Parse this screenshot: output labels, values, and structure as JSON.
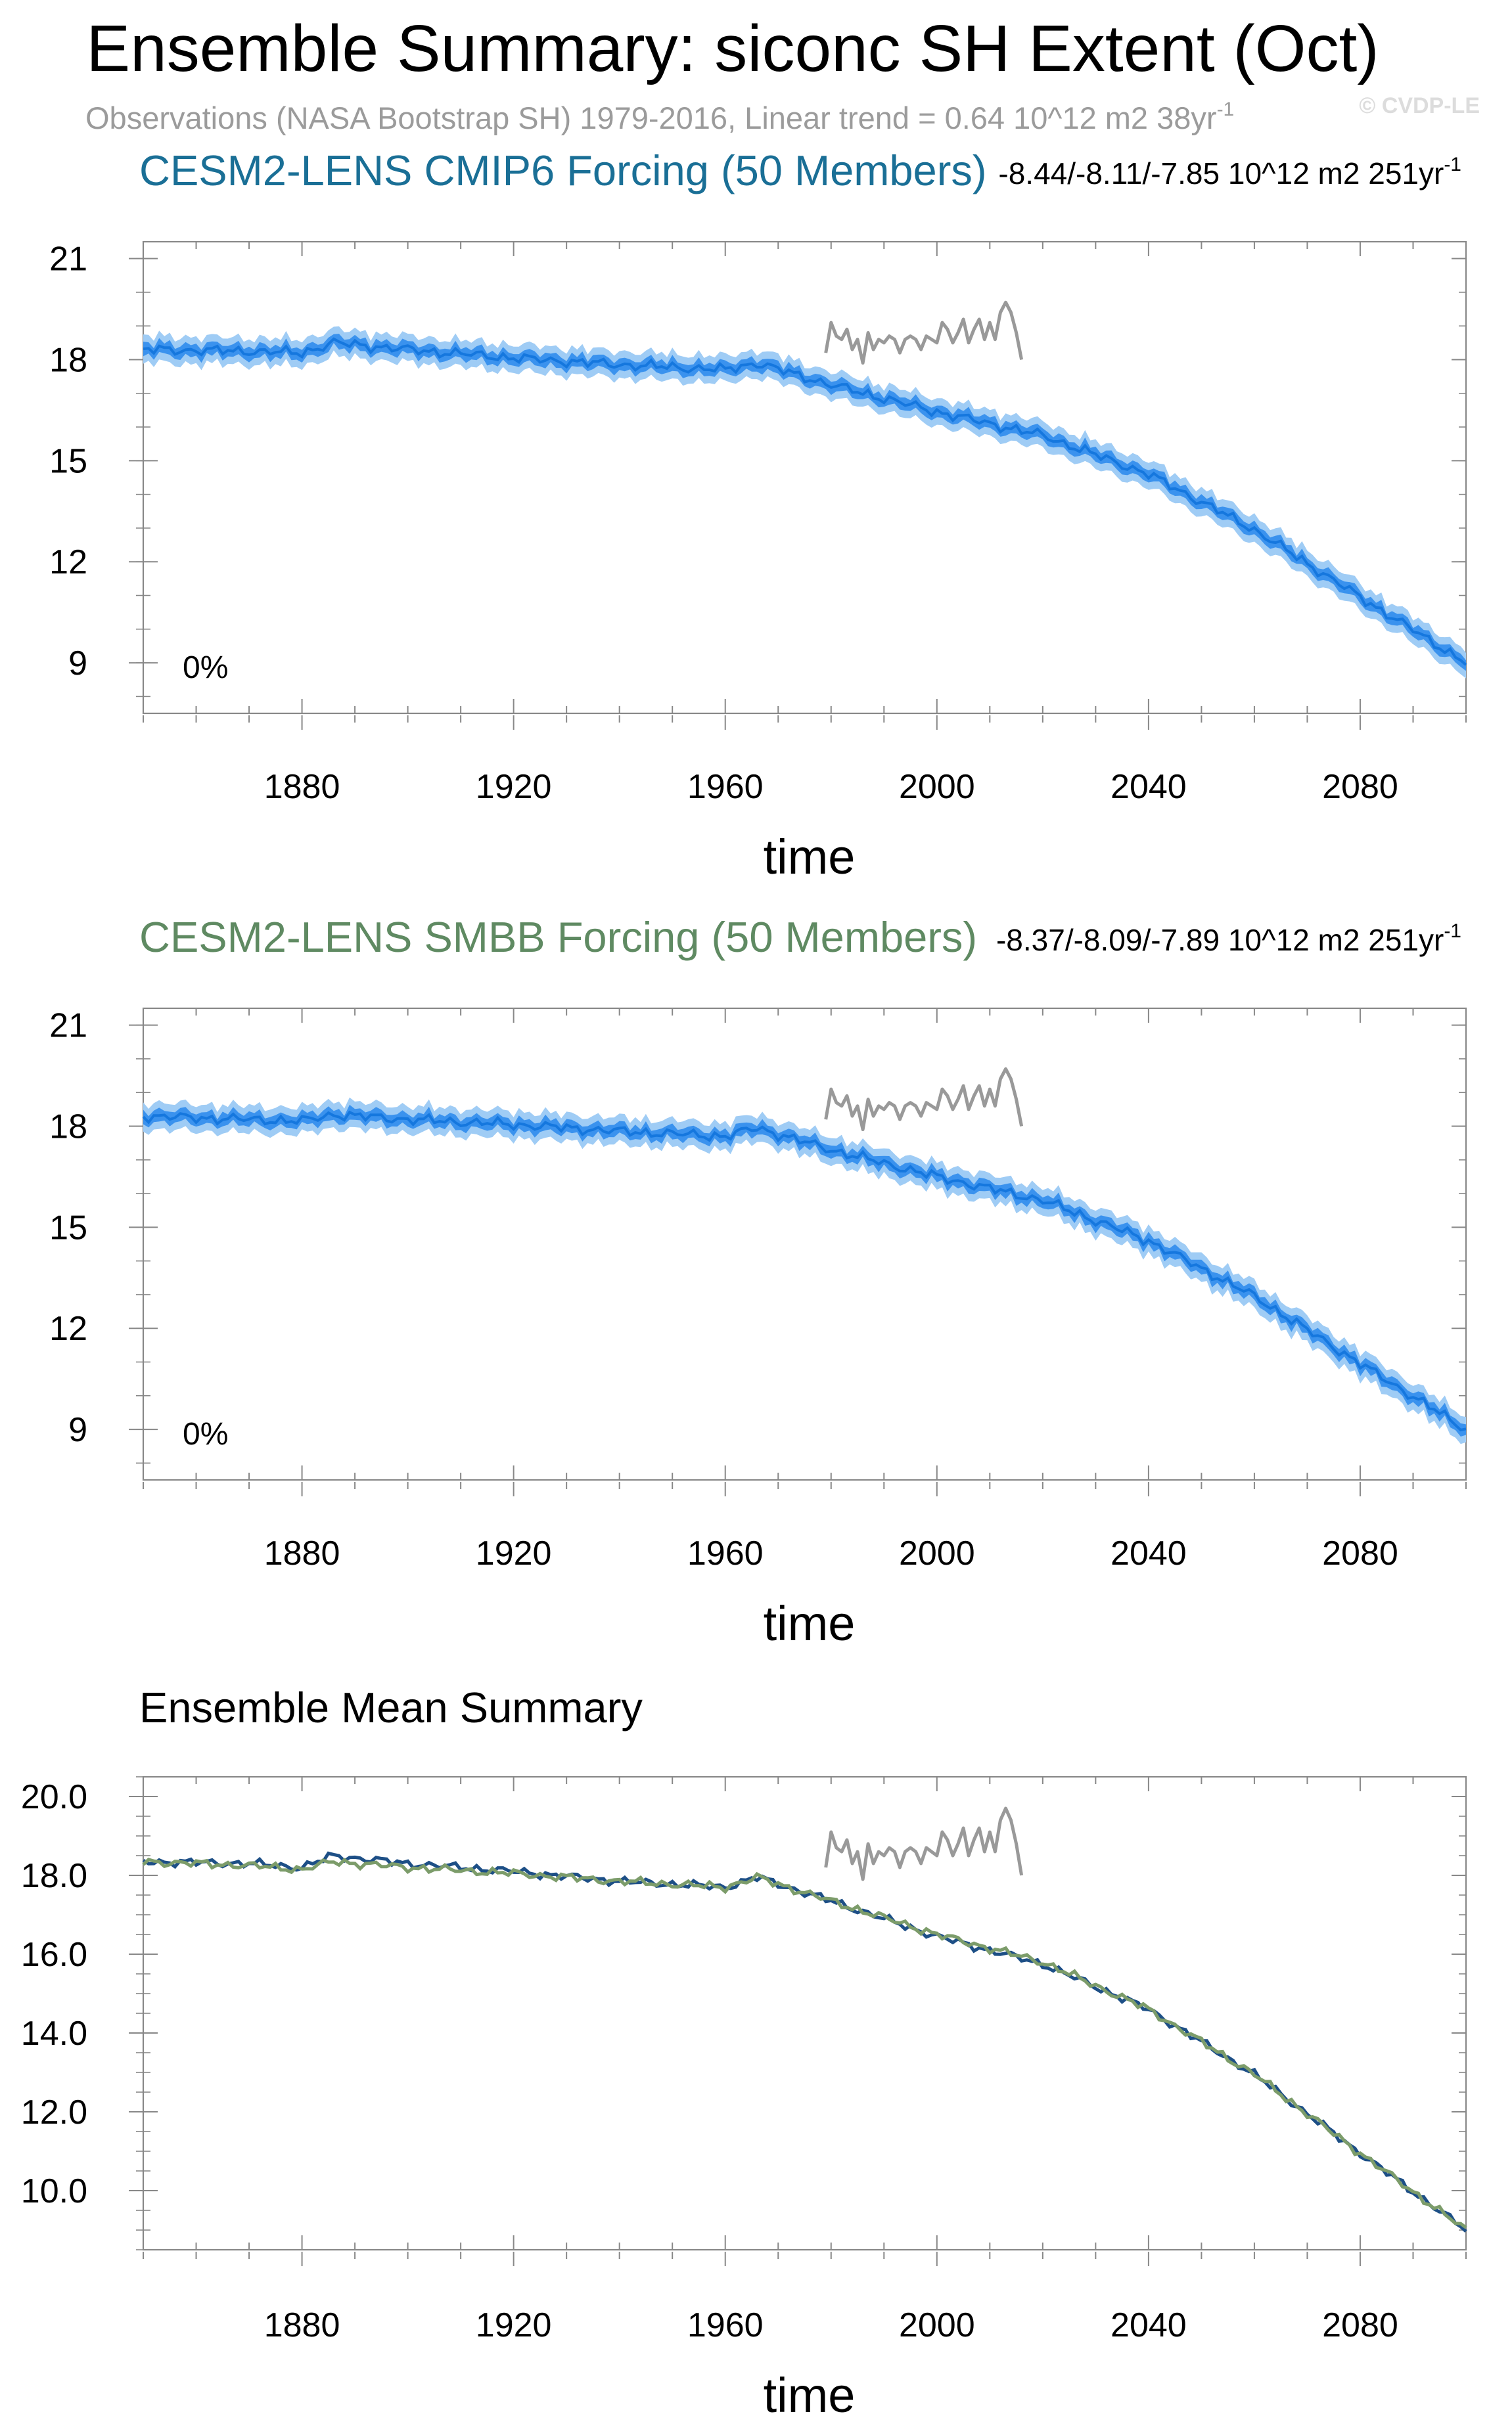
{
  "figure": {
    "title": "Ensemble Summary: siconc SH Extent (Oct)",
    "subtitle": "Observations (NASA Bootstrap SH) 1979-2016, Linear trend = 0.64 10^12 m2 38yr",
    "subtitle_exp": "-1",
    "credit": "© CVDP-LE"
  },
  "colors": {
    "cmip6_title": "#1a6f96",
    "smbb_title": "#5f8a62",
    "band_outer": "#9fccf5",
    "band_inner": "#3a92ee",
    "mean_line": "#1577de",
    "obs": "#999999",
    "axis": "#888888",
    "mean_cmip6": "#1d4f86",
    "mean_smbb": "#7c9c6a"
  },
  "chart_data": [
    {
      "id": "cmip6",
      "type": "line",
      "title": "CESM2-LENS CMIP6 Forcing (50 Members)",
      "trend_text": "-8.44/-8.11/-7.85 10^12 m2 251yr",
      "trend_exp": "-1",
      "percent_label": "0%",
      "xlabel": "time",
      "xlim": [
        1850,
        2100
      ],
      "ylim": [
        7.5,
        21.5
      ],
      "xticks": [
        "1880",
        "1920",
        "1960",
        "2000",
        "2040",
        "2080"
      ],
      "yticks": [
        "21",
        "18",
        "15",
        "12",
        "9"
      ],
      "ensemble_mean_knots": {
        "x": [
          1850,
          1870,
          1880,
          1886,
          1900,
          1920,
          1940,
          1960,
          1966,
          1980,
          2000,
          2020,
          2040,
          2060,
          2080,
          2100
        ],
        "y": [
          18.3,
          18.25,
          18.2,
          18.5,
          18.3,
          18.05,
          17.85,
          17.7,
          17.9,
          17.25,
          16.45,
          15.75,
          14.6,
          12.95,
          10.95,
          9.0
        ]
      },
      "spread_inner": 0.18,
      "spread_outer": 0.4,
      "observations": {
        "name": "Observations (NASA Bootstrap SH)",
        "x": [
          1979,
          1980,
          1981,
          1982,
          1983,
          1984,
          1985,
          1986,
          1987,
          1988,
          1989,
          1990,
          1991,
          1992,
          1993,
          1994,
          1995,
          1996,
          1997,
          1998,
          1999,
          2000,
          2001,
          2002,
          2003,
          2004,
          2005,
          2006,
          2007,
          2008,
          2009,
          2010,
          2011,
          2012,
          2013,
          2014,
          2015,
          2016
        ],
        "y": [
          18.2,
          19.1,
          18.7,
          18.6,
          18.9,
          18.3,
          18.6,
          17.9,
          18.8,
          18.3,
          18.6,
          18.5,
          18.7,
          18.6,
          18.2,
          18.6,
          18.7,
          18.6,
          18.3,
          18.7,
          18.6,
          18.5,
          19.1,
          18.9,
          18.5,
          18.8,
          19.2,
          18.5,
          18.9,
          19.2,
          18.6,
          19.1,
          18.6,
          19.4,
          19.7,
          19.4,
          18.8,
          18.0
        ]
      }
    },
    {
      "id": "smbb",
      "type": "line",
      "title": "CESM2-LENS SMBB Forcing (50 Members)",
      "trend_text": "-8.37/-8.09/-7.89 10^12 m2 251yr",
      "trend_exp": "-1",
      "percent_label": "0%",
      "xlabel": "time",
      "xlim": [
        1850,
        2100
      ],
      "ylim": [
        7.5,
        21.5
      ],
      "xticks": [
        "1880",
        "1920",
        "1960",
        "2000",
        "2040",
        "2080"
      ],
      "yticks": [
        "21",
        "18",
        "15",
        "12",
        "9"
      ],
      "ensemble_mean_knots": {
        "x": [
          1850,
          1870,
          1880,
          1886,
          1900,
          1920,
          1940,
          1960,
          1966,
          1980,
          2000,
          2020,
          2040,
          2060,
          2080,
          2100
        ],
        "y": [
          18.3,
          18.2,
          18.15,
          18.35,
          18.2,
          18.05,
          17.85,
          17.7,
          17.95,
          17.3,
          16.5,
          15.8,
          14.6,
          12.95,
          10.95,
          9.0
        ]
      },
      "spread_inner": 0.18,
      "spread_outer": 0.4,
      "observations": {
        "name": "Observations (NASA Bootstrap SH)",
        "x": [
          1979,
          1980,
          1981,
          1982,
          1983,
          1984,
          1985,
          1986,
          1987,
          1988,
          1989,
          1990,
          1991,
          1992,
          1993,
          1994,
          1995,
          1996,
          1997,
          1998,
          1999,
          2000,
          2001,
          2002,
          2003,
          2004,
          2005,
          2006,
          2007,
          2008,
          2009,
          2010,
          2011,
          2012,
          2013,
          2014,
          2015,
          2016
        ],
        "y": [
          18.2,
          19.1,
          18.7,
          18.6,
          18.9,
          18.3,
          18.6,
          17.9,
          18.8,
          18.3,
          18.6,
          18.5,
          18.7,
          18.6,
          18.2,
          18.6,
          18.7,
          18.6,
          18.3,
          18.7,
          18.6,
          18.5,
          19.1,
          18.9,
          18.5,
          18.8,
          19.2,
          18.5,
          18.9,
          19.2,
          18.6,
          19.1,
          18.6,
          19.4,
          19.7,
          19.4,
          18.8,
          18.0
        ]
      }
    },
    {
      "id": "mean",
      "type": "line",
      "title": "Ensemble Mean Summary",
      "xlabel": "time",
      "xlim": [
        1850,
        2100
      ],
      "ylim": [
        8.5,
        20.5
      ],
      "xticks": [
        "1880",
        "1920",
        "1960",
        "2000",
        "2040",
        "2080"
      ],
      "yticks": [
        "20.0",
        "18.0",
        "16.0",
        "14.0",
        "12.0",
        "10.0"
      ],
      "series": [
        {
          "name": "CESM2-LENS CMIP6 Forcing",
          "knots": {
            "x": [
              1850,
              1870,
              1880,
              1886,
              1900,
              1920,
              1940,
              1960,
              1966,
              1980,
              2000,
              2020,
              2040,
              2060,
              2080,
              2100
            ],
            "y": [
              18.35,
              18.3,
              18.2,
              18.5,
              18.3,
              18.1,
              17.85,
              17.7,
              17.95,
              17.35,
              16.45,
              15.75,
              14.6,
              12.95,
              10.95,
              9.0
            ]
          }
        },
        {
          "name": "CESM2-LENS SMBB Forcing",
          "knots": {
            "x": [
              1850,
              1870,
              1880,
              1886,
              1900,
              1920,
              1940,
              1960,
              1966,
              1980,
              2000,
              2020,
              2040,
              2060,
              2080,
              2100
            ],
            "y": [
              18.35,
              18.25,
              18.15,
              18.35,
              18.2,
              18.05,
              17.85,
              17.7,
              17.95,
              17.35,
              16.5,
              15.8,
              14.6,
              12.95,
              10.95,
              9.0
            ]
          }
        }
      ],
      "observations": {
        "name": "Observations (NASA Bootstrap SH)",
        "x": [
          1979,
          1980,
          1981,
          1982,
          1983,
          1984,
          1985,
          1986,
          1987,
          1988,
          1989,
          1990,
          1991,
          1992,
          1993,
          1994,
          1995,
          1996,
          1997,
          1998,
          1999,
          2000,
          2001,
          2002,
          2003,
          2004,
          2005,
          2006,
          2007,
          2008,
          2009,
          2010,
          2011,
          2012,
          2013,
          2014,
          2015,
          2016
        ],
        "y": [
          18.2,
          19.1,
          18.7,
          18.6,
          18.9,
          18.3,
          18.6,
          17.9,
          18.8,
          18.3,
          18.6,
          18.5,
          18.7,
          18.6,
          18.2,
          18.6,
          18.7,
          18.6,
          18.3,
          18.7,
          18.6,
          18.5,
          19.1,
          18.9,
          18.5,
          18.8,
          19.2,
          18.5,
          18.9,
          19.2,
          18.6,
          19.1,
          18.6,
          19.4,
          19.7,
          19.4,
          18.8,
          18.0
        ]
      }
    }
  ]
}
